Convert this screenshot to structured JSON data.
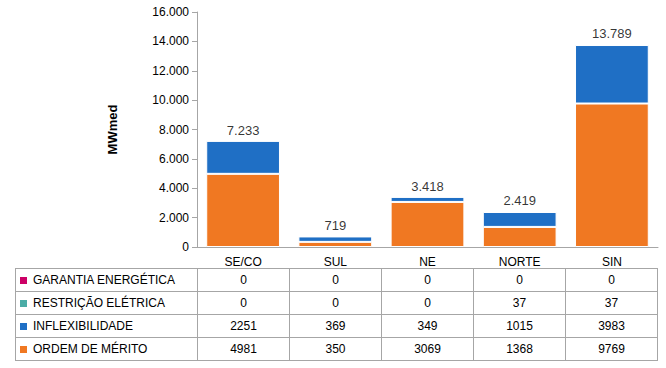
{
  "chart_data": {
    "type": "bar",
    "stacked": true,
    "grid": false,
    "ylabel": "MWmed",
    "categories": [
      "SE/CO",
      "SUL",
      "NE",
      "NORTE",
      "SIN"
    ],
    "series": [
      {
        "name": "ORDEM DE MÉRITO",
        "color": "#F07822",
        "values": [
          4981,
          350,
          3069,
          1368,
          9769
        ]
      },
      {
        "name": "INFLEXIBILIDADE",
        "color": "#1F6FC5",
        "values": [
          2251,
          369,
          349,
          1015,
          3983
        ]
      },
      {
        "name": "RESTRIÇÃO ELÉTRICA",
        "color": "#4BACA6",
        "values": [
          0,
          0,
          0,
          37,
          37
        ]
      },
      {
        "name": "GARANTIA ENERGÉTICA",
        "color": "#CC0066",
        "values": [
          0,
          0,
          0,
          0,
          0
        ]
      }
    ],
    "annotations": [
      {
        "x": "SE/CO",
        "y": 7233,
        "label": "7.233"
      },
      {
        "x": "SUL",
        "y": 719,
        "label": "719"
      },
      {
        "x": "NE",
        "y": 3418,
        "label": "3.418"
      },
      {
        "x": "NORTE",
        "y": 2419,
        "label": "2.419"
      },
      {
        "x": "SIN",
        "y": 13789,
        "label": "13.789"
      }
    ],
    "ylim": [
      0,
      16000
    ],
    "yticks": [
      0,
      {
        "value": 2000,
        "label": "2.000"
      },
      {
        "value": 4000,
        "label": "4.000"
      },
      {
        "value": 6000,
        "label": "6.000"
      },
      {
        "value": 8000,
        "label": "8.000"
      },
      {
        "value": 10000,
        "label": "10.000"
      },
      {
        "value": 12000,
        "label": "12.000"
      },
      {
        "value": 14000,
        "label": "14.000"
      },
      {
        "value": 16000,
        "label": "16.000"
      }
    ]
  }
}
